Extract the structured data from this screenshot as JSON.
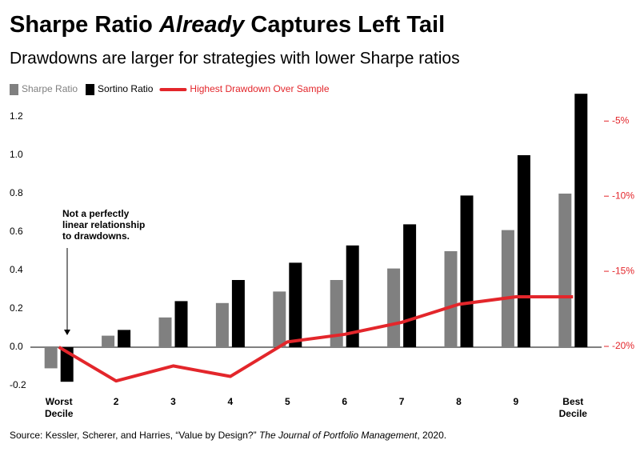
{
  "chart_data": {
    "type": "bar",
    "title": [
      "Sharpe Ratio ",
      "Already",
      " Captures Left Tail"
    ],
    "subtitle": "Drawdowns are larger for strategies with lower Sharpe ratios",
    "categories": [
      "Worst Decile",
      "2",
      "3",
      "4",
      "5",
      "6",
      "7",
      "8",
      "9",
      "Best Decile"
    ],
    "series": [
      {
        "name": "Sharpe Ratio",
        "color": "#808080",
        "values": [
          -0.11,
          0.06,
          0.155,
          0.23,
          0.29,
          0.35,
          0.41,
          0.5,
          0.61,
          0.8
        ]
      },
      {
        "name": "Sortino Ratio",
        "color": "#000000",
        "values": [
          -0.18,
          0.09,
          0.24,
          0.35,
          0.44,
          0.53,
          0.64,
          0.79,
          1.0,
          1.32
        ]
      },
      {
        "name": "Highest Drawdown Over Sample",
        "color": "#e3262b",
        "type": "line",
        "axis": "y2",
        "values": [
          -20.05,
          -22.3,
          -21.3,
          -22.0,
          -19.7,
          -19.2,
          -18.4,
          -17.2,
          -16.7,
          -16.7
        ]
      }
    ],
    "ylim": [
      -0.25,
      1.35
    ],
    "yticks": [
      {
        "value": -0.2,
        "label": "-0.2"
      },
      {
        "value": 0,
        "label": "0.0"
      },
      0.2,
      0.4,
      0.6,
      0.8,
      {
        "value": 1,
        "label": "1.0"
      },
      1.2
    ],
    "y2lim": [
      -23.25,
      -2.8
    ],
    "y2ticks": [
      {
        "value": -20,
        "label": "-20%"
      },
      {
        "value": -15,
        "label": "-15%"
      },
      {
        "value": -10,
        "label": "-10%"
      },
      {
        "value": -5,
        "label": "-5%"
      }
    ],
    "annotation": [
      "Not a perfectly",
      "linear relationship",
      "to drawdowns."
    ],
    "source": [
      "Source: Kessler, Scherer, and Harries, “Value by Design?” ",
      "The Journal of Portfolio Management",
      ", 2020."
    ]
  }
}
